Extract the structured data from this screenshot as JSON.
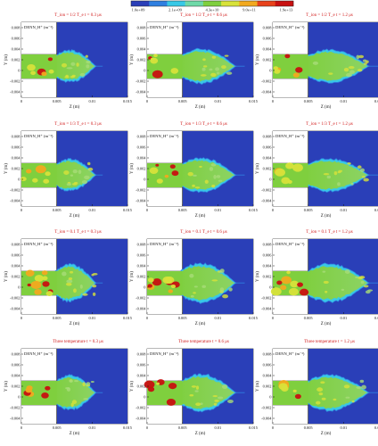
{
  "colorbar": {
    "ticks": [
      "1.0e+09",
      "2.1e+09",
      "4.3e+10",
      "9.0e+11",
      "1.9e+13"
    ],
    "colors": [
      "#2a3fb8",
      "#2f7fe0",
      "#38c8e6",
      "#6fd9a8",
      "#7fcf3e",
      "#d8e23a",
      "#f2a91f",
      "#e8421b",
      "#c81010"
    ]
  },
  "axes": {
    "xlabel": "Z (m)",
    "ylabel": "Y (m)",
    "xticks": [
      "0",
      "0.005",
      "0.01",
      "0.015"
    ],
    "yticks": [
      "0.008",
      "0.006",
      "0.004",
      "0.002",
      "0",
      "-0.002",
      "-0.004"
    ]
  },
  "chart_data": [
    {
      "type": "heatmap",
      "row": 0,
      "col": 0,
      "title": "T_ion = 1/2 T_e   t = 0.3 μs",
      "label": "DENN_H⁺ (m⁻³)",
      "xlim": [
        0,
        0.015
      ],
      "ylim": [
        -0.005,
        0.009
      ]
    },
    {
      "type": "heatmap",
      "row": 0,
      "col": 1,
      "title": "T_ion = 1/2 T_e   t = 0.6 μs",
      "label": "DENN_H⁺ (m⁻³)",
      "xlim": [
        0,
        0.015
      ],
      "ylim": [
        -0.005,
        0.009
      ]
    },
    {
      "type": "heatmap",
      "row": 0,
      "col": 2,
      "title": "T_ion = 1/2 T_e   t = 1.2 μs",
      "label": "DENN_H⁺ (m⁻³)",
      "xlim": [
        0,
        0.015
      ],
      "ylim": [
        -0.005,
        0.009
      ]
    },
    {
      "type": "heatmap",
      "row": 1,
      "col": 0,
      "title": "T_ion = 1/3 T_e   t = 0.3 μs",
      "label": "DENN_H⁺ (m⁻³)",
      "xlim": [
        0,
        0.015
      ],
      "ylim": [
        -0.005,
        0.009
      ]
    },
    {
      "type": "heatmap",
      "row": 1,
      "col": 1,
      "title": "T_ion = 1/3 T_e   t = 0.6 μs",
      "label": "DENN_H⁺ (m⁻³)",
      "xlim": [
        0,
        0.015
      ],
      "ylim": [
        -0.005,
        0.009
      ]
    },
    {
      "type": "heatmap",
      "row": 1,
      "col": 2,
      "title": "T_ion = 1/3 T_e   t = 1.2 μs",
      "label": "DENN_H⁺ (m⁻³)",
      "xlim": [
        0,
        0.015
      ],
      "ylim": [
        -0.005,
        0.009
      ]
    },
    {
      "type": "heatmap",
      "row": 2,
      "col": 0,
      "title": "T_ion = 0.1 T_e   t = 0.3 μs",
      "label": "DENN_H⁺ (m⁻³)",
      "xlim": [
        0,
        0.015
      ],
      "ylim": [
        -0.005,
        0.009
      ]
    },
    {
      "type": "heatmap",
      "row": 2,
      "col": 1,
      "title": "T_ion = 0.1 T_e   t = 0.6 μs",
      "label": "DENN_H⁺ (m⁻³)",
      "xlim": [
        0,
        0.015
      ],
      "ylim": [
        -0.005,
        0.009
      ]
    },
    {
      "type": "heatmap",
      "row": 2,
      "col": 2,
      "title": "T_ion = 0.1 T_e   t = 1.2 μs",
      "label": "DENN_H⁺ (m⁻³)",
      "xlim": [
        0,
        0.015
      ],
      "ylim": [
        -0.005,
        0.009
      ]
    },
    {
      "type": "heatmap",
      "row": 3,
      "col": 0,
      "title": "Three temperature   t = 0.3 μs",
      "label": "DENN_H⁺ (m⁻³)",
      "xlim": [
        0,
        0.015
      ],
      "ylim": [
        -0.005,
        0.009
      ]
    },
    {
      "type": "heatmap",
      "row": 3,
      "col": 1,
      "title": "Three temperature   t = 0.6 μs",
      "label": "DENN_H⁺ (m⁻³)",
      "xlim": [
        0,
        0.015
      ],
      "ylim": [
        -0.005,
        0.009
      ]
    },
    {
      "type": "heatmap",
      "row": 3,
      "col": 2,
      "title": "Three temperature   t = 1.2 μs",
      "label": "DENN_H⁺ (m⁻³)",
      "xlim": [
        0,
        0.015
      ],
      "ylim": [
        -0.005,
        0.009
      ]
    }
  ]
}
